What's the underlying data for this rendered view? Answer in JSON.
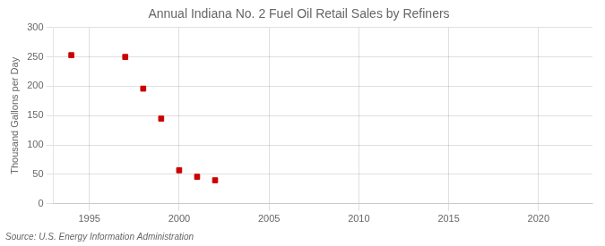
{
  "chart_data": {
    "type": "scatter",
    "title": "Annual Indiana No. 2 Fuel Oil Retail Sales by Refiners",
    "ylabel": "Thousand Gallons per Day",
    "annotation": "Source: U.S. Energy Information Administration",
    "x": [
      1994,
      1997,
      1998,
      1999,
      2000,
      2001,
      2002
    ],
    "values": [
      253,
      250,
      196,
      145,
      57,
      46,
      40
    ],
    "color": "#cc0000",
    "marker": "square",
    "xlim": [
      1993,
      2023
    ],
    "xticks": [
      1995,
      2000,
      2005,
      2010,
      2015,
      2020
    ],
    "ylim": [
      0,
      300
    ],
    "yticks": [
      0,
      50,
      100,
      150,
      200,
      250,
      300
    ],
    "grid": true
  }
}
